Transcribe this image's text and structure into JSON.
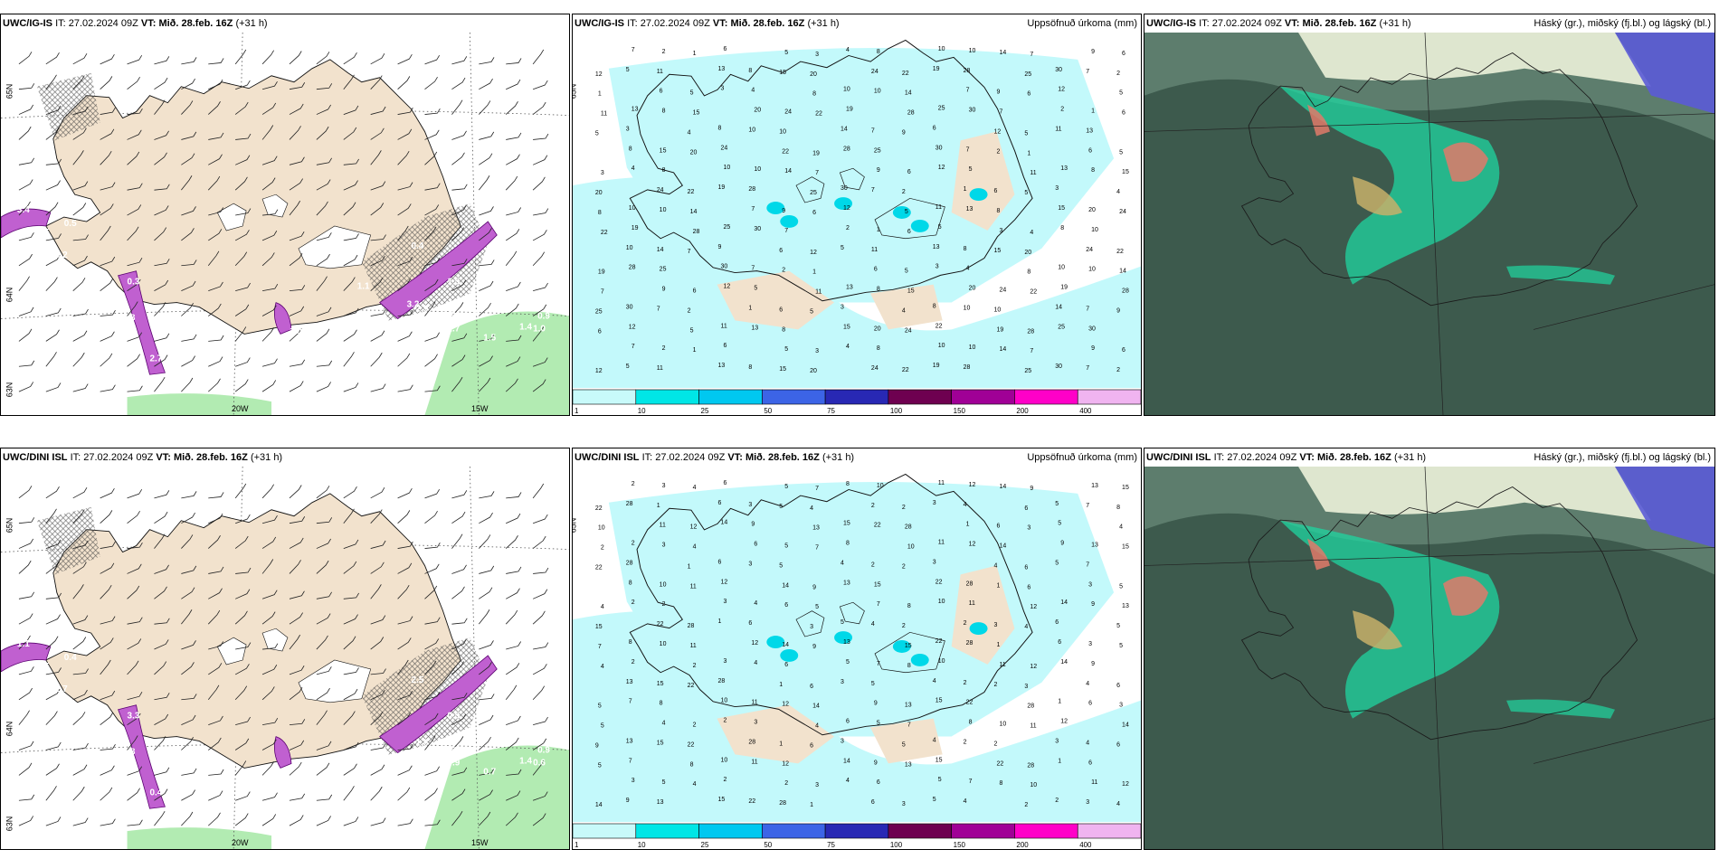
{
  "panels": [
    {
      "id": "p1",
      "kind": "wind",
      "model": "UWC/IG-IS",
      "it_label": "IT:",
      "it": "27.02.2024 09Z",
      "vt_label": "VT:",
      "vt": "Mið. 28.feb. 16Z",
      "lead": "(+31 h)",
      "right_title": "",
      "labels": [
        "3.4",
        "1.5",
        "0.5",
        "0.2",
        "0.3",
        "1.8",
        "2.7",
        "0.4",
        "2.9",
        "1.5",
        "1.0",
        "0.3",
        "1.7",
        "1.5",
        "1.4",
        "1.0",
        "0.9",
        "3.6",
        "1.0",
        "3.2",
        "1.1",
        "0.4"
      ]
    },
    {
      "id": "p2",
      "kind": "precip",
      "model": "UWC/IG-IS",
      "it_label": "IT:",
      "it": "27.02.2024 09Z",
      "vt_label": "VT:",
      "vt": "Mið. 28.feb. 16Z",
      "lead": "(+31 h)",
      "right_title": "Uppsöfnuð úrkoma (mm)",
      "numbers": [
        "7",
        "2",
        "1",
        "6",
        "5",
        "3",
        "4",
        "8",
        "10",
        "10",
        "14",
        "7",
        "9",
        "6",
        "12",
        "5",
        "11",
        "13",
        "8",
        "15",
        "20",
        "24",
        "22",
        "19",
        "28",
        "25",
        "30"
      ]
    },
    {
      "id": "p3",
      "kind": "cloud",
      "model": "UWC/IG-IS",
      "it_label": "IT:",
      "it": "27.02.2024 09Z",
      "vt_label": "VT:",
      "vt": "Mið. 28.feb. 16Z",
      "lead": "(+31 h)",
      "right_title": "Háský (gr.), miðský (fj.bl.) og lágský (bl.)"
    },
    {
      "id": "p4",
      "kind": "wind",
      "model": "UWC/DINI ISL",
      "it_label": "IT:",
      "it": "27.02.2024 09Z",
      "vt_label": "VT:",
      "vt": "Mið. 28.feb. 16Z",
      "lead": "(+31 h)",
      "right_title": "",
      "labels": [
        "1.1",
        "0.5",
        "0.4",
        "1.7",
        "3.3",
        "1.8",
        "0.4",
        "2.5",
        "1.8",
        "0.5",
        "1.3",
        "0.7",
        "0.9",
        "0.7",
        "1.4",
        "0.6",
        "0.9",
        "0.5"
      ]
    },
    {
      "id": "p5",
      "kind": "precip",
      "model": "UWC/DINI ISL",
      "it_label": "IT:",
      "it": "27.02.2024 09Z",
      "vt_label": "VT:",
      "vt": "Mið. 28.feb. 16Z",
      "lead": "(+31 h)",
      "right_title": "Uppsöfnuð úrkoma (mm)",
      "numbers": [
        "2",
        "3",
        "4",
        "6",
        "5",
        "7",
        "8",
        "10",
        "11",
        "12",
        "14",
        "9",
        "13",
        "15",
        "22",
        "28",
        "1",
        "6",
        "3",
        "5",
        "4",
        "2"
      ]
    },
    {
      "id": "p6",
      "kind": "cloud",
      "model": "UWC/DINI ISL",
      "it_label": "IT:",
      "it": "27.02.2024 09Z",
      "vt_label": "VT:",
      "vt": "Mið. 28.feb. 16Z",
      "lead": "(+31 h)",
      "right_title": "Háský (gr.), miðský (fj.bl.) og lágský (bl.)"
    }
  ],
  "axis_labels": {
    "lon_a": "20W",
    "lon_b": "15W",
    "lat_a": "65N",
    "lat_b": "64N",
    "lat_c": "63N"
  },
  "colorbar": {
    "ticks": [
      "1",
      "10",
      "25",
      "50",
      "75",
      "100",
      "150",
      "200",
      "400"
    ],
    "colors": [
      "#c8fafa",
      "#00e6e6",
      "#00c8f0",
      "#3c64e6",
      "#2828b4",
      "#6e0050",
      "#a00096",
      "#ff00c8",
      "#f0b4f0"
    ]
  },
  "colors": {
    "land": "#f2e2cd",
    "precip_light": "#c3f9fb",
    "wind_magenta": "#c060d0",
    "green": "#9fe69f",
    "cloud_bg": "#3d5a4d",
    "cloud_teal": "#1fd6a0"
  }
}
